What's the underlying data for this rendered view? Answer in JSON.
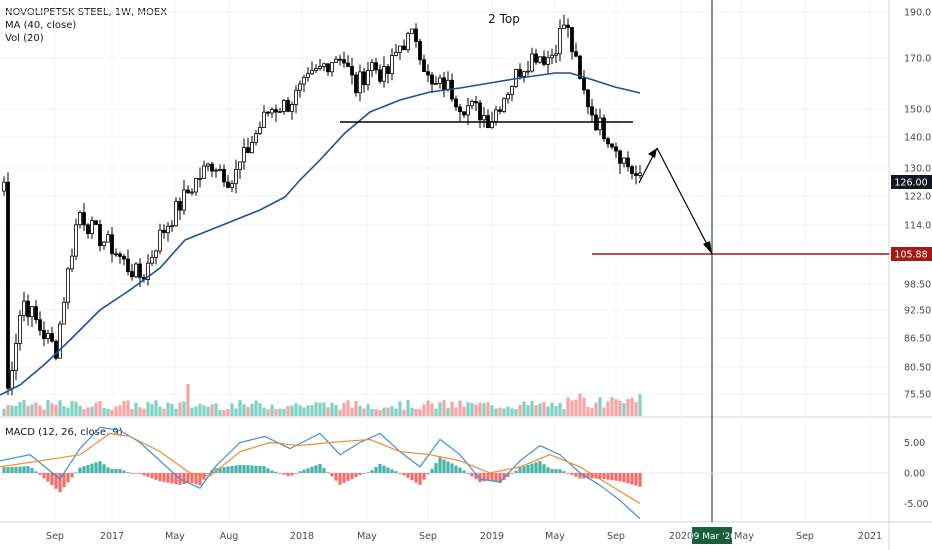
{
  "legend": {
    "symbol": "NOVOLIPETSK STEEL, 1W, MOEX",
    "ma": "MA (40, close)",
    "vol": "Vol (20)",
    "macd": "MACD (12, 26, close, 9)"
  },
  "annotation": "2 Top",
  "price_axis": [
    "190.00",
    "170.00",
    "150.00",
    "140.00",
    "130.00",
    "122.00",
    "114.00",
    "98.50",
    "92.50",
    "86.50",
    "80.50",
    "75.50"
  ],
  "last_price_label": "126.00",
  "target_label": "105.88",
  "macd_axis": [
    "5.00",
    "0.00",
    "-5.00"
  ],
  "time_axis": [
    "Sep",
    "2017",
    "May",
    "Aug",
    "2018",
    "May",
    "Sep",
    "2019",
    "May",
    "Sep",
    "2020",
    "May",
    "Sep",
    "2021"
  ],
  "cursor_date": "09 Mar '20",
  "colors": {
    "up": "#26a69a",
    "down": "#000000",
    "ma": "#1e4f9c",
    "vol_up": "#7fd1c4",
    "vol_down": "#f5a3a3",
    "macd_line": "#3b8fd9",
    "signal_line": "#f58a2c",
    "hist_up": "#26a69a",
    "hist_down": "#ef5350",
    "target": "#a31818",
    "cursor": "#1b5e3c"
  },
  "chart_data": {
    "type": "candlestick",
    "symbol": "NOVOLIPETSK STEEL",
    "interval": "1W",
    "exchange": "MOEX",
    "series": [
      {
        "name": "MA (40, close)",
        "values_approx": [
          74,
          76,
          80,
          86,
          92,
          98,
          104,
          110,
          114,
          116,
          118,
          121,
          124,
          128,
          134,
          140,
          144,
          148,
          152,
          155,
          157,
          160,
          162,
          162,
          163,
          163,
          165,
          165,
          161,
          156
        ]
      },
      {
        "name": "Price (close, approx)",
        "values_approx": [
          76,
          92,
          88,
          84,
          120,
          112,
          108,
          104,
          100,
          116,
          124,
          132,
          128,
          140,
          150,
          155,
          165,
          172,
          160,
          150,
          158,
          150,
          146,
          160,
          172,
          180,
          162,
          150,
          140,
          126
        ]
      }
    ],
    "ylim": [
      72,
      193
    ],
    "key_levels": {
      "neckline": 145,
      "target": 105.88,
      "last": 126.0
    },
    "macd": {
      "ylim": [
        -7,
        8
      ]
    }
  }
}
